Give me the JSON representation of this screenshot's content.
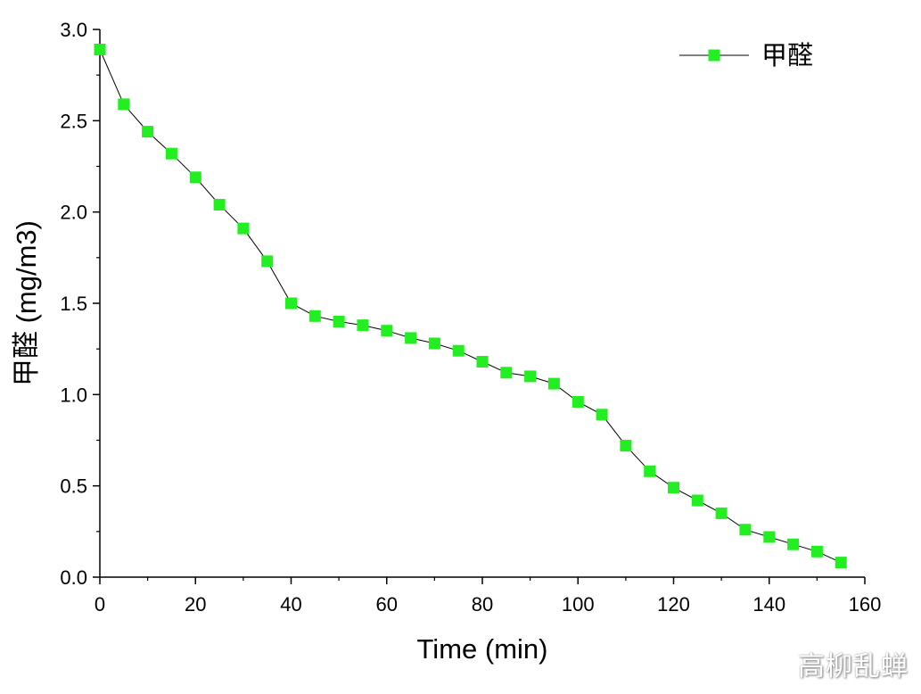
{
  "chart_data": {
    "type": "line",
    "xlabel": "Time (min)",
    "ylabel": "甲醛 (mg/m3)",
    "xlim": [
      0,
      160
    ],
    "ylim": [
      0,
      3.0
    ],
    "x_ticks": [
      "0",
      "20",
      "40",
      "60",
      "80",
      "100",
      "120",
      "140",
      "160"
    ],
    "y_ticks": [
      "0.0",
      "0.5",
      "1.0",
      "1.5",
      "2.0",
      "2.5",
      "3.0"
    ],
    "grid": false,
    "legend_position": "top-right",
    "series": [
      {
        "name": "甲醛",
        "color": "#22ee22",
        "line_color": "#000000",
        "marker": "square",
        "x": [
          0,
          5,
          10,
          15,
          20,
          25,
          30,
          35,
          40,
          45,
          50,
          55,
          60,
          65,
          70,
          75,
          80,
          85,
          90,
          95,
          100,
          105,
          110,
          115,
          120,
          125,
          130,
          135,
          140,
          145,
          150,
          155
        ],
        "y": [
          2.89,
          2.59,
          2.44,
          2.32,
          2.19,
          2.04,
          1.91,
          1.73,
          1.5,
          1.43,
          1.4,
          1.38,
          1.35,
          1.31,
          1.28,
          1.24,
          1.18,
          1.12,
          1.1,
          1.06,
          0.96,
          0.89,
          0.72,
          0.58,
          0.49,
          0.42,
          0.35,
          0.26,
          0.22,
          0.18,
          0.14,
          0.08
        ]
      }
    ]
  },
  "watermark": "高柳乱蝉"
}
